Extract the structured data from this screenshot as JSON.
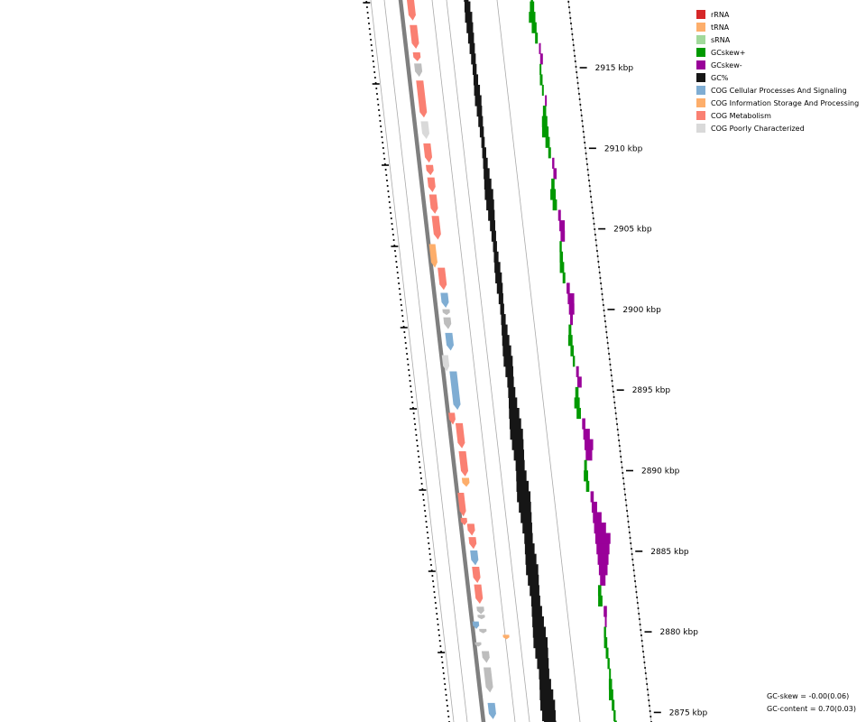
{
  "legend": [
    {
      "label": "rRNA",
      "color": "#d62728"
    },
    {
      "label": "tRNA",
      "color": "#fdae6b"
    },
    {
      "label": "sRNA",
      "color": "#a1d99b"
    },
    {
      "label": "GCskew+",
      "color": "#009900"
    },
    {
      "label": "GCskew-",
      "color": "#990099"
    },
    {
      "label": "GC%",
      "color": "#161616"
    },
    {
      "label": "COG Cellular Processes And Signaling",
      "color": "#7fadd3"
    },
    {
      "label": "COG Information Storage And Processing",
      "color": "#fdae6b"
    },
    {
      "label": "COG Metabolism",
      "color": "#fa8072"
    },
    {
      "label": "COG Poorly Characterized",
      "color": "#d9d9d9"
    }
  ],
  "scale_labels": [
    "2915 kbp",
    "2910 kbp",
    "2905 kbp",
    "2900 kbp",
    "2895 kbp",
    "2890 kbp",
    "2885 kbp",
    "2880 kbp",
    "2875 kbp"
  ],
  "stats": {
    "gc_skew": "GC-skew = -0.00(0.06)",
    "gc_content": "GC-content = 0.70(0.03)"
  },
  "colors": {
    "backbone": "#7f7f7f",
    "guide": "#aaaaaa",
    "gc": "#161616",
    "skew_pos": "#009900",
    "skew_neg": "#990099",
    "gray_feature": "#bdbdbd"
  },
  "features": [
    {
      "t": 0.0,
      "side": "L",
      "len": 0.008,
      "cat": "COG Metabolism"
    },
    {
      "t": 0.012,
      "side": "L",
      "len": 0.028,
      "cat": "COG Metabolism"
    },
    {
      "t": 0.046,
      "side": "L",
      "len": 0.032,
      "cat": "COG Metabolism"
    },
    {
      "t": 0.083,
      "side": "L",
      "len": 0.012,
      "cat": "COG Metabolism"
    },
    {
      "t": 0.098,
      "side": "L",
      "len": 0.018,
      "cat": "gray"
    },
    {
      "t": 0.121,
      "side": "L",
      "len": 0.05,
      "cat": "COG Metabolism"
    },
    {
      "t": 0.176,
      "side": "L",
      "len": 0.024,
      "cat": "COG Poorly Characterized"
    },
    {
      "t": 0.206,
      "side": "L",
      "len": 0.026,
      "cat": "COG Metabolism"
    },
    {
      "t": 0.235,
      "side": "L",
      "len": 0.014,
      "cat": "COG Metabolism"
    },
    {
      "t": 0.252,
      "side": "L",
      "len": 0.02,
      "cat": "COG Metabolism"
    },
    {
      "t": 0.275,
      "side": "L",
      "len": 0.026,
      "cat": "COG Metabolism"
    },
    {
      "t": 0.304,
      "side": "L",
      "len": 0.032,
      "cat": "COG Metabolism"
    },
    {
      "t": 0.342,
      "side": "O",
      "len": 0.032,
      "cat": "COG Information Storage And Processing"
    },
    {
      "t": 0.374,
      "side": "L",
      "len": 0.03,
      "cat": "COG Metabolism"
    },
    {
      "t": 0.408,
      "side": "L",
      "len": 0.02,
      "cat": "COG Cellular Processes And Signaling"
    },
    {
      "t": 0.43,
      "side": "L",
      "len": 0.008,
      "cat": "gray"
    },
    {
      "t": 0.441,
      "side": "L",
      "len": 0.016,
      "cat": "gray"
    },
    {
      "t": 0.462,
      "side": "L",
      "len": 0.024,
      "cat": "COG Cellular Processes And Signaling"
    },
    {
      "t": 0.492,
      "side": "O",
      "len": 0.022,
      "cat": "COG Poorly Characterized"
    },
    {
      "t": 0.514,
      "side": "L",
      "len": 0.052,
      "cat": "COG Cellular Processes And Signaling"
    },
    {
      "t": 0.57,
      "side": "O",
      "len": 0.016,
      "cat": "COG Metabolism"
    },
    {
      "t": 0.584,
      "side": "L",
      "len": 0.034,
      "cat": "COG Metabolism"
    },
    {
      "t": 0.622,
      "side": "L",
      "len": 0.034,
      "cat": "COG Metabolism"
    },
    {
      "t": 0.658,
      "side": "L",
      "len": 0.012,
      "cat": "COG Information Storage And Processing"
    },
    {
      "t": 0.678,
      "side": "O",
      "len": 0.032,
      "cat": "COG Metabolism"
    },
    {
      "t": 0.712,
      "side": "O",
      "len": 0.01,
      "cat": "COG Metabolism"
    },
    {
      "t": 0.72,
      "side": "L",
      "len": 0.016,
      "cat": "COG Metabolism"
    },
    {
      "t": 0.738,
      "side": "L",
      "len": 0.016,
      "cat": "COG Metabolism"
    },
    {
      "t": 0.756,
      "side": "L",
      "len": 0.02,
      "cat": "COG Cellular Processes And Signaling"
    },
    {
      "t": 0.778,
      "side": "L",
      "len": 0.022,
      "cat": "COG Metabolism"
    },
    {
      "t": 0.802,
      "side": "L",
      "len": 0.026,
      "cat": "COG Metabolism"
    },
    {
      "t": 0.832,
      "side": "L",
      "len": 0.01,
      "cat": "gray"
    },
    {
      "t": 0.843,
      "side": "L",
      "len": 0.006,
      "cat": "gray"
    },
    {
      "t": 0.852,
      "side": "O",
      "len": 0.01,
      "cat": "COG Cellular Processes And Signaling"
    },
    {
      "t": 0.862,
      "side": "L",
      "len": 0.006,
      "cat": "gray"
    },
    {
      "t": 0.87,
      "side": "R",
      "len": 0.006,
      "cat": "COG Information Storage And Processing"
    },
    {
      "t": 0.88,
      "side": "O",
      "len": 0.006,
      "cat": "gray"
    },
    {
      "t": 0.892,
      "side": "L",
      "len": 0.016,
      "cat": "gray"
    },
    {
      "t": 0.914,
      "side": "L",
      "len": 0.034,
      "cat": "gray"
    },
    {
      "t": 0.962,
      "side": "L",
      "len": 0.022,
      "cat": "COG Cellular Processes And Signaling"
    },
    {
      "t": 0.988,
      "side": "L",
      "len": 0.012,
      "cat": "COG Metabolism"
    }
  ],
  "gc_profile": [
    0.3,
    0.5,
    0.7,
    0.6,
    0.5,
    0.4,
    0.3,
    0.2,
    0.3,
    0.5,
    0.6,
    0.4,
    0.3,
    0.2,
    0.1,
    0.2,
    0.3,
    0.5,
    0.7,
    0.9,
    0.8,
    0.6,
    0.4,
    0.3,
    0.2,
    0.3,
    0.5,
    0.6,
    0.5,
    0.3,
    0.2,
    0.3,
    0.5,
    0.7,
    0.9,
    1.0,
    0.8,
    0.6,
    0.7,
    0.9,
    1.2,
    1.4,
    1.6,
    1.4,
    1.2,
    1.0,
    1.2,
    1.5,
    1.7,
    1.5,
    1.3,
    1.1,
    0.9,
    1.1,
    1.3,
    1.5,
    1.3,
    1.1,
    1.0,
    1.2,
    1.4,
    1.6,
    1.8,
    1.6,
    1.4,
    1.2,
    1.4,
    1.7,
    1.9,
    1.7,
    1.5
  ],
  "skew_profile": [
    0.4,
    0.8,
    1.2,
    0.9,
    0.5,
    -0.3,
    -0.5,
    0.3,
    0.5,
    0.3,
    -0.2,
    0.6,
    1.0,
    1.2,
    0.8,
    0.5,
    -0.4,
    -0.6,
    0.6,
    1.0,
    0.8,
    -0.5,
    -1.0,
    -0.8,
    0.4,
    0.6,
    0.8,
    0.5,
    -0.6,
    -1.2,
    -1.0,
    -0.5,
    0.5,
    0.8,
    0.6,
    0.4,
    -0.5,
    -0.8,
    0.6,
    1.0,
    0.8,
    -0.6,
    -1.2,
    -1.6,
    -1.2,
    0.5,
    0.8,
    0.6,
    -0.6,
    -1.0,
    -1.6,
    -2.2,
    -2.8,
    -2.4,
    -2.0,
    -1.6,
    -1.0,
    0.6,
    0.8,
    -0.6,
    -0.3,
    0.4,
    0.6,
    0.5,
    0.4,
    0.3,
    0.6,
    0.8,
    0.5,
    0.4,
    0.5
  ]
}
